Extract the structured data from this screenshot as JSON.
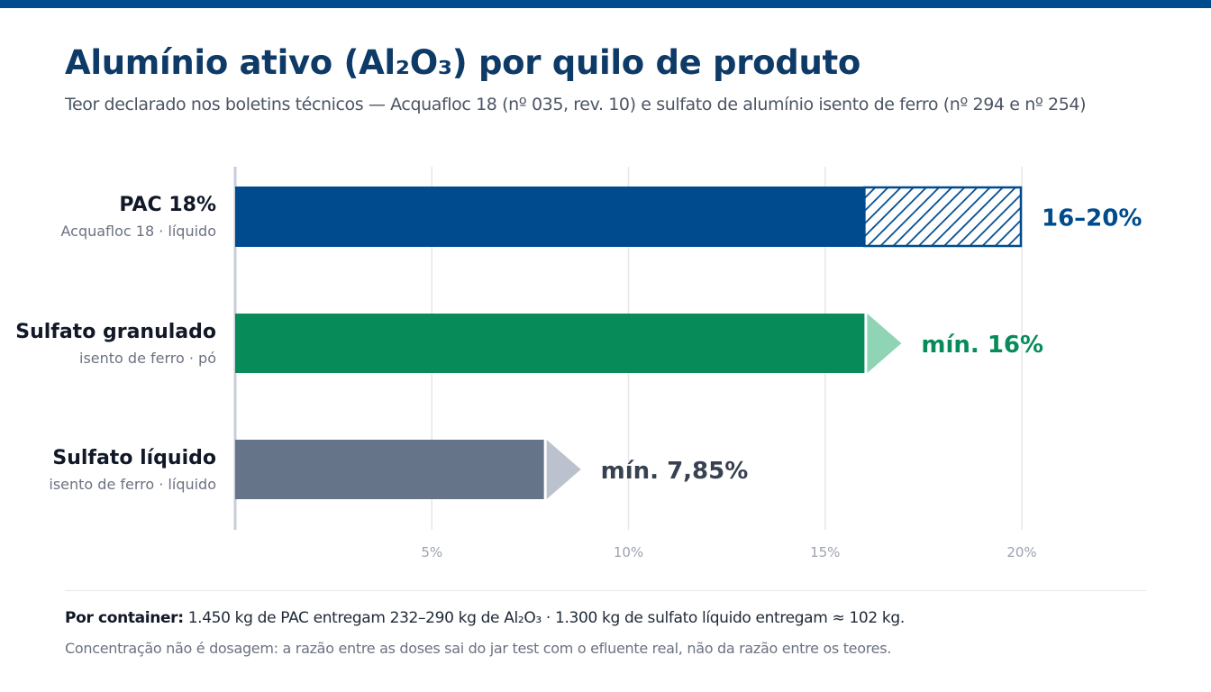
{
  "title": "Alumínio ativo (Al₂O₃) por quilo de produto",
  "subtitle": "Teor declarado nos boletins técnicos — Acquafloc 18 (nº 035, rev. 10) e sulfato de alumínio isento de ferro (nº 294 e nº 254)",
  "colors": {
    "brand": "#004b8d",
    "pac": "#004b8d",
    "granulado": "#078b58",
    "granulado_arrow": "#8fd4b4",
    "liquido": "#667489",
    "liquido_arrow": "#bcc2cd",
    "grid": "#e5e7eb",
    "axis": "#c7ced8"
  },
  "chart_data": {
    "type": "bar",
    "orientation": "horizontal",
    "xlim": [
      0,
      20
    ],
    "x_ticks": [
      "5%",
      "10%",
      "15%",
      "20%"
    ],
    "x_tick_values": [
      5,
      10,
      15,
      20
    ],
    "grid": true,
    "unit": "%",
    "categories": [
      {
        "name": "PAC 18%",
        "subtitle": "Acquafloc 18 · líquido",
        "min": 16,
        "max": 20,
        "value_label": "16–20%",
        "style": "range",
        "color": "#004b8d",
        "arrow_color": ""
      },
      {
        "name": "Sulfato granulado",
        "subtitle": "isento de ferro · pó",
        "min": 16,
        "max": null,
        "value_label": "mín. 16%",
        "style": "minimum",
        "color": "#078b58",
        "arrow_color": "#8fd4b4"
      },
      {
        "name": "Sulfato líquido",
        "subtitle": "isento de ferro · líquido",
        "min": 7.85,
        "max": null,
        "value_label": "mín. 7,85%",
        "style": "minimum",
        "color": "#667489",
        "arrow_color": "#bcc2cd"
      }
    ]
  },
  "footer": {
    "bold": "Por container:",
    "text": " 1.450 kg de PAC entregam 232–290 kg de Al₂O₃ · 1.300 kg de sulfato líquido entregam ≈ 102 kg.",
    "note": "Concentração não é dosagem: a razão entre as doses sai do jar test com o efluente real, não da razão entre os teores."
  }
}
